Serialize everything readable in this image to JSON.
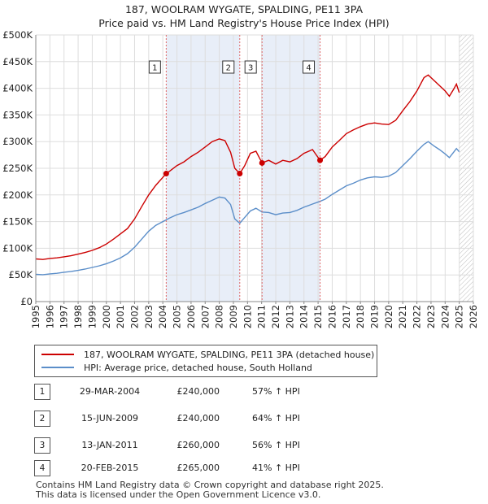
{
  "title": {
    "line1": "187, WOOLRAM WYGATE, SPALDING, PE11 3PA",
    "line2": "Price paid vs. HM Land Registry's House Price Index (HPI)"
  },
  "colors": {
    "red": "#cc0000",
    "blue": "#5b8ec9",
    "shade": "#e8eef8",
    "grid": "#dddddd",
    "marker_line": "#e06666"
  },
  "legend": {
    "red_label": "187, WOOLRAM WYGATE, SPALDING, PE11 3PA (detached house)",
    "blue_label": "HPI: Average price, detached house, South Holland"
  },
  "transactions": [
    {
      "num": "1",
      "date": "29-MAR-2004",
      "price": "£240,000",
      "hpi": "57% ↑ HPI"
    },
    {
      "num": "2",
      "date": "15-JUN-2009",
      "price": "£240,000",
      "hpi": "64% ↑ HPI"
    },
    {
      "num": "3",
      "date": "13-JAN-2011",
      "price": "£260,000",
      "hpi": "56% ↑ HPI"
    },
    {
      "num": "4",
      "date": "20-FEB-2015",
      "price": "£265,000",
      "hpi": "41% ↑ HPI"
    }
  ],
  "footer": {
    "line1": "Contains HM Land Registry data © Crown copyright and database right 2025.",
    "line2": "This data is licensed under the Open Government Licence v3.0."
  },
  "chart_data": {
    "type": "line",
    "title": "187, WOOLRAM WYGATE, SPALDING, PE11 3PA — Price paid vs. HM Land Registry's House Price Index (HPI)",
    "xlim": [
      1995,
      2026
    ],
    "ylim": [
      0,
      500000
    ],
    "x_ticks": [
      "1995",
      "1996",
      "1997",
      "1998",
      "1999",
      "2000",
      "2001",
      "2002",
      "2003",
      "2004",
      "2005",
      "2006",
      "2007",
      "2008",
      "2009",
      "2010",
      "2011",
      "2012",
      "2013",
      "2014",
      "2015",
      "2016",
      "2017",
      "2018",
      "2019",
      "2020",
      "2021",
      "2022",
      "2023",
      "2024",
      "2025",
      "2026"
    ],
    "y_ticks": [
      {
        "value": 0,
        "label": "£0"
      },
      {
        "value": 50000,
        "label": "£50K"
      },
      {
        "value": 100000,
        "label": "£100K"
      },
      {
        "value": 150000,
        "label": "£150K"
      },
      {
        "value": 200000,
        "label": "£200K"
      },
      {
        "value": 250000,
        "label": "£250K"
      },
      {
        "value": 300000,
        "label": "£300K"
      },
      {
        "value": 350000,
        "label": "£350K"
      },
      {
        "value": 400000,
        "label": "£400K"
      },
      {
        "value": 450000,
        "label": "£450K"
      },
      {
        "value": 500000,
        "label": "£500K"
      }
    ],
    "shaded_periods": [
      {
        "start": 2004.24,
        "end": 2009.45
      },
      {
        "start": 2011.03,
        "end": 2015.14
      }
    ],
    "hatched_future_start": 2025.0,
    "sales": [
      {
        "label": "1",
        "x": 2004.24,
        "y": 240000
      },
      {
        "label": "2",
        "x": 2009.45,
        "y": 240000
      },
      {
        "label": "3",
        "x": 2011.03,
        "y": 260000
      },
      {
        "label": "4",
        "x": 2015.14,
        "y": 265000
      }
    ],
    "series": [
      {
        "name": "187, WOOLRAM WYGATE, SPALDING, PE11 3PA (detached house)",
        "color": "#cc0000",
        "points": [
          [
            1995.0,
            80000
          ],
          [
            1995.5,
            79000
          ],
          [
            1996.0,
            81000
          ],
          [
            1996.5,
            82000
          ],
          [
            1997.0,
            84000
          ],
          [
            1997.5,
            86000
          ],
          [
            1998.0,
            89000
          ],
          [
            1998.5,
            92000
          ],
          [
            1999.0,
            96000
          ],
          [
            1999.5,
            101000
          ],
          [
            2000.0,
            108000
          ],
          [
            2000.5,
            117000
          ],
          [
            2001.0,
            127000
          ],
          [
            2001.5,
            137000
          ],
          [
            2002.0,
            155000
          ],
          [
            2002.5,
            178000
          ],
          [
            2003.0,
            200000
          ],
          [
            2003.5,
            218000
          ],
          [
            2004.0,
            233000
          ],
          [
            2004.24,
            240000
          ],
          [
            2004.5,
            245000
          ],
          [
            2005.0,
            255000
          ],
          [
            2005.5,
            262000
          ],
          [
            2006.0,
            272000
          ],
          [
            2006.5,
            280000
          ],
          [
            2007.0,
            290000
          ],
          [
            2007.5,
            300000
          ],
          [
            2008.0,
            305000
          ],
          [
            2008.4,
            302000
          ],
          [
            2008.8,
            280000
          ],
          [
            2009.1,
            250000
          ],
          [
            2009.45,
            240000
          ],
          [
            2009.8,
            255000
          ],
          [
            2010.2,
            278000
          ],
          [
            2010.6,
            282000
          ],
          [
            2011.03,
            260000
          ],
          [
            2011.5,
            265000
          ],
          [
            2012.0,
            258000
          ],
          [
            2012.5,
            265000
          ],
          [
            2013.0,
            262000
          ],
          [
            2013.5,
            268000
          ],
          [
            2014.0,
            278000
          ],
          [
            2014.6,
            285000
          ],
          [
            2015.14,
            265000
          ],
          [
            2015.5,
            272000
          ],
          [
            2016.0,
            290000
          ],
          [
            2016.5,
            302000
          ],
          [
            2017.0,
            315000
          ],
          [
            2017.5,
            322000
          ],
          [
            2018.0,
            328000
          ],
          [
            2018.5,
            333000
          ],
          [
            2019.0,
            335000
          ],
          [
            2019.5,
            333000
          ],
          [
            2020.0,
            332000
          ],
          [
            2020.5,
            340000
          ],
          [
            2021.0,
            358000
          ],
          [
            2021.5,
            375000
          ],
          [
            2022.0,
            395000
          ],
          [
            2022.5,
            420000
          ],
          [
            2022.8,
            425000
          ],
          [
            2023.2,
            415000
          ],
          [
            2023.6,
            405000
          ],
          [
            2024.0,
            395000
          ],
          [
            2024.3,
            385000
          ],
          [
            2024.6,
            398000
          ],
          [
            2024.8,
            408000
          ],
          [
            2025.0,
            392000
          ]
        ]
      },
      {
        "name": "HPI: Average price, detached house, South Holland",
        "color": "#5b8ec9",
        "points": [
          [
            1995.0,
            51000
          ],
          [
            1995.5,
            50500
          ],
          [
            1996.0,
            52000
          ],
          [
            1996.5,
            53000
          ],
          [
            1997.0,
            55000
          ],
          [
            1997.5,
            56500
          ],
          [
            1998.0,
            58500
          ],
          [
            1998.5,
            61000
          ],
          [
            1999.0,
            64000
          ],
          [
            1999.5,
            67000
          ],
          [
            2000.0,
            71000
          ],
          [
            2000.5,
            76000
          ],
          [
            2001.0,
            82000
          ],
          [
            2001.5,
            90000
          ],
          [
            2002.0,
            102000
          ],
          [
            2002.5,
            117000
          ],
          [
            2003.0,
            132000
          ],
          [
            2003.5,
            143000
          ],
          [
            2004.0,
            150000
          ],
          [
            2004.5,
            157000
          ],
          [
            2005.0,
            163000
          ],
          [
            2005.5,
            167000
          ],
          [
            2006.0,
            172000
          ],
          [
            2006.5,
            177000
          ],
          [
            2007.0,
            184000
          ],
          [
            2007.5,
            190000
          ],
          [
            2008.0,
            196000
          ],
          [
            2008.4,
            194000
          ],
          [
            2008.8,
            182000
          ],
          [
            2009.1,
            155000
          ],
          [
            2009.45,
            147000
          ],
          [
            2009.8,
            158000
          ],
          [
            2010.2,
            170000
          ],
          [
            2010.6,
            175000
          ],
          [
            2011.03,
            168000
          ],
          [
            2011.5,
            167000
          ],
          [
            2012.0,
            163000
          ],
          [
            2012.5,
            166000
          ],
          [
            2013.0,
            167000
          ],
          [
            2013.5,
            171000
          ],
          [
            2014.0,
            177000
          ],
          [
            2014.6,
            183000
          ],
          [
            2015.14,
            188000
          ],
          [
            2015.5,
            192000
          ],
          [
            2016.0,
            201000
          ],
          [
            2016.5,
            209000
          ],
          [
            2017.0,
            217000
          ],
          [
            2017.5,
            222000
          ],
          [
            2018.0,
            228000
          ],
          [
            2018.5,
            232000
          ],
          [
            2019.0,
            234000
          ],
          [
            2019.5,
            233000
          ],
          [
            2020.0,
            235000
          ],
          [
            2020.5,
            242000
          ],
          [
            2021.0,
            255000
          ],
          [
            2021.5,
            268000
          ],
          [
            2022.0,
            282000
          ],
          [
            2022.5,
            295000
          ],
          [
            2022.8,
            300000
          ],
          [
            2023.2,
            292000
          ],
          [
            2023.6,
            285000
          ],
          [
            2024.0,
            277000
          ],
          [
            2024.3,
            270000
          ],
          [
            2024.6,
            280000
          ],
          [
            2024.8,
            287000
          ],
          [
            2025.0,
            281000
          ]
        ]
      }
    ]
  }
}
